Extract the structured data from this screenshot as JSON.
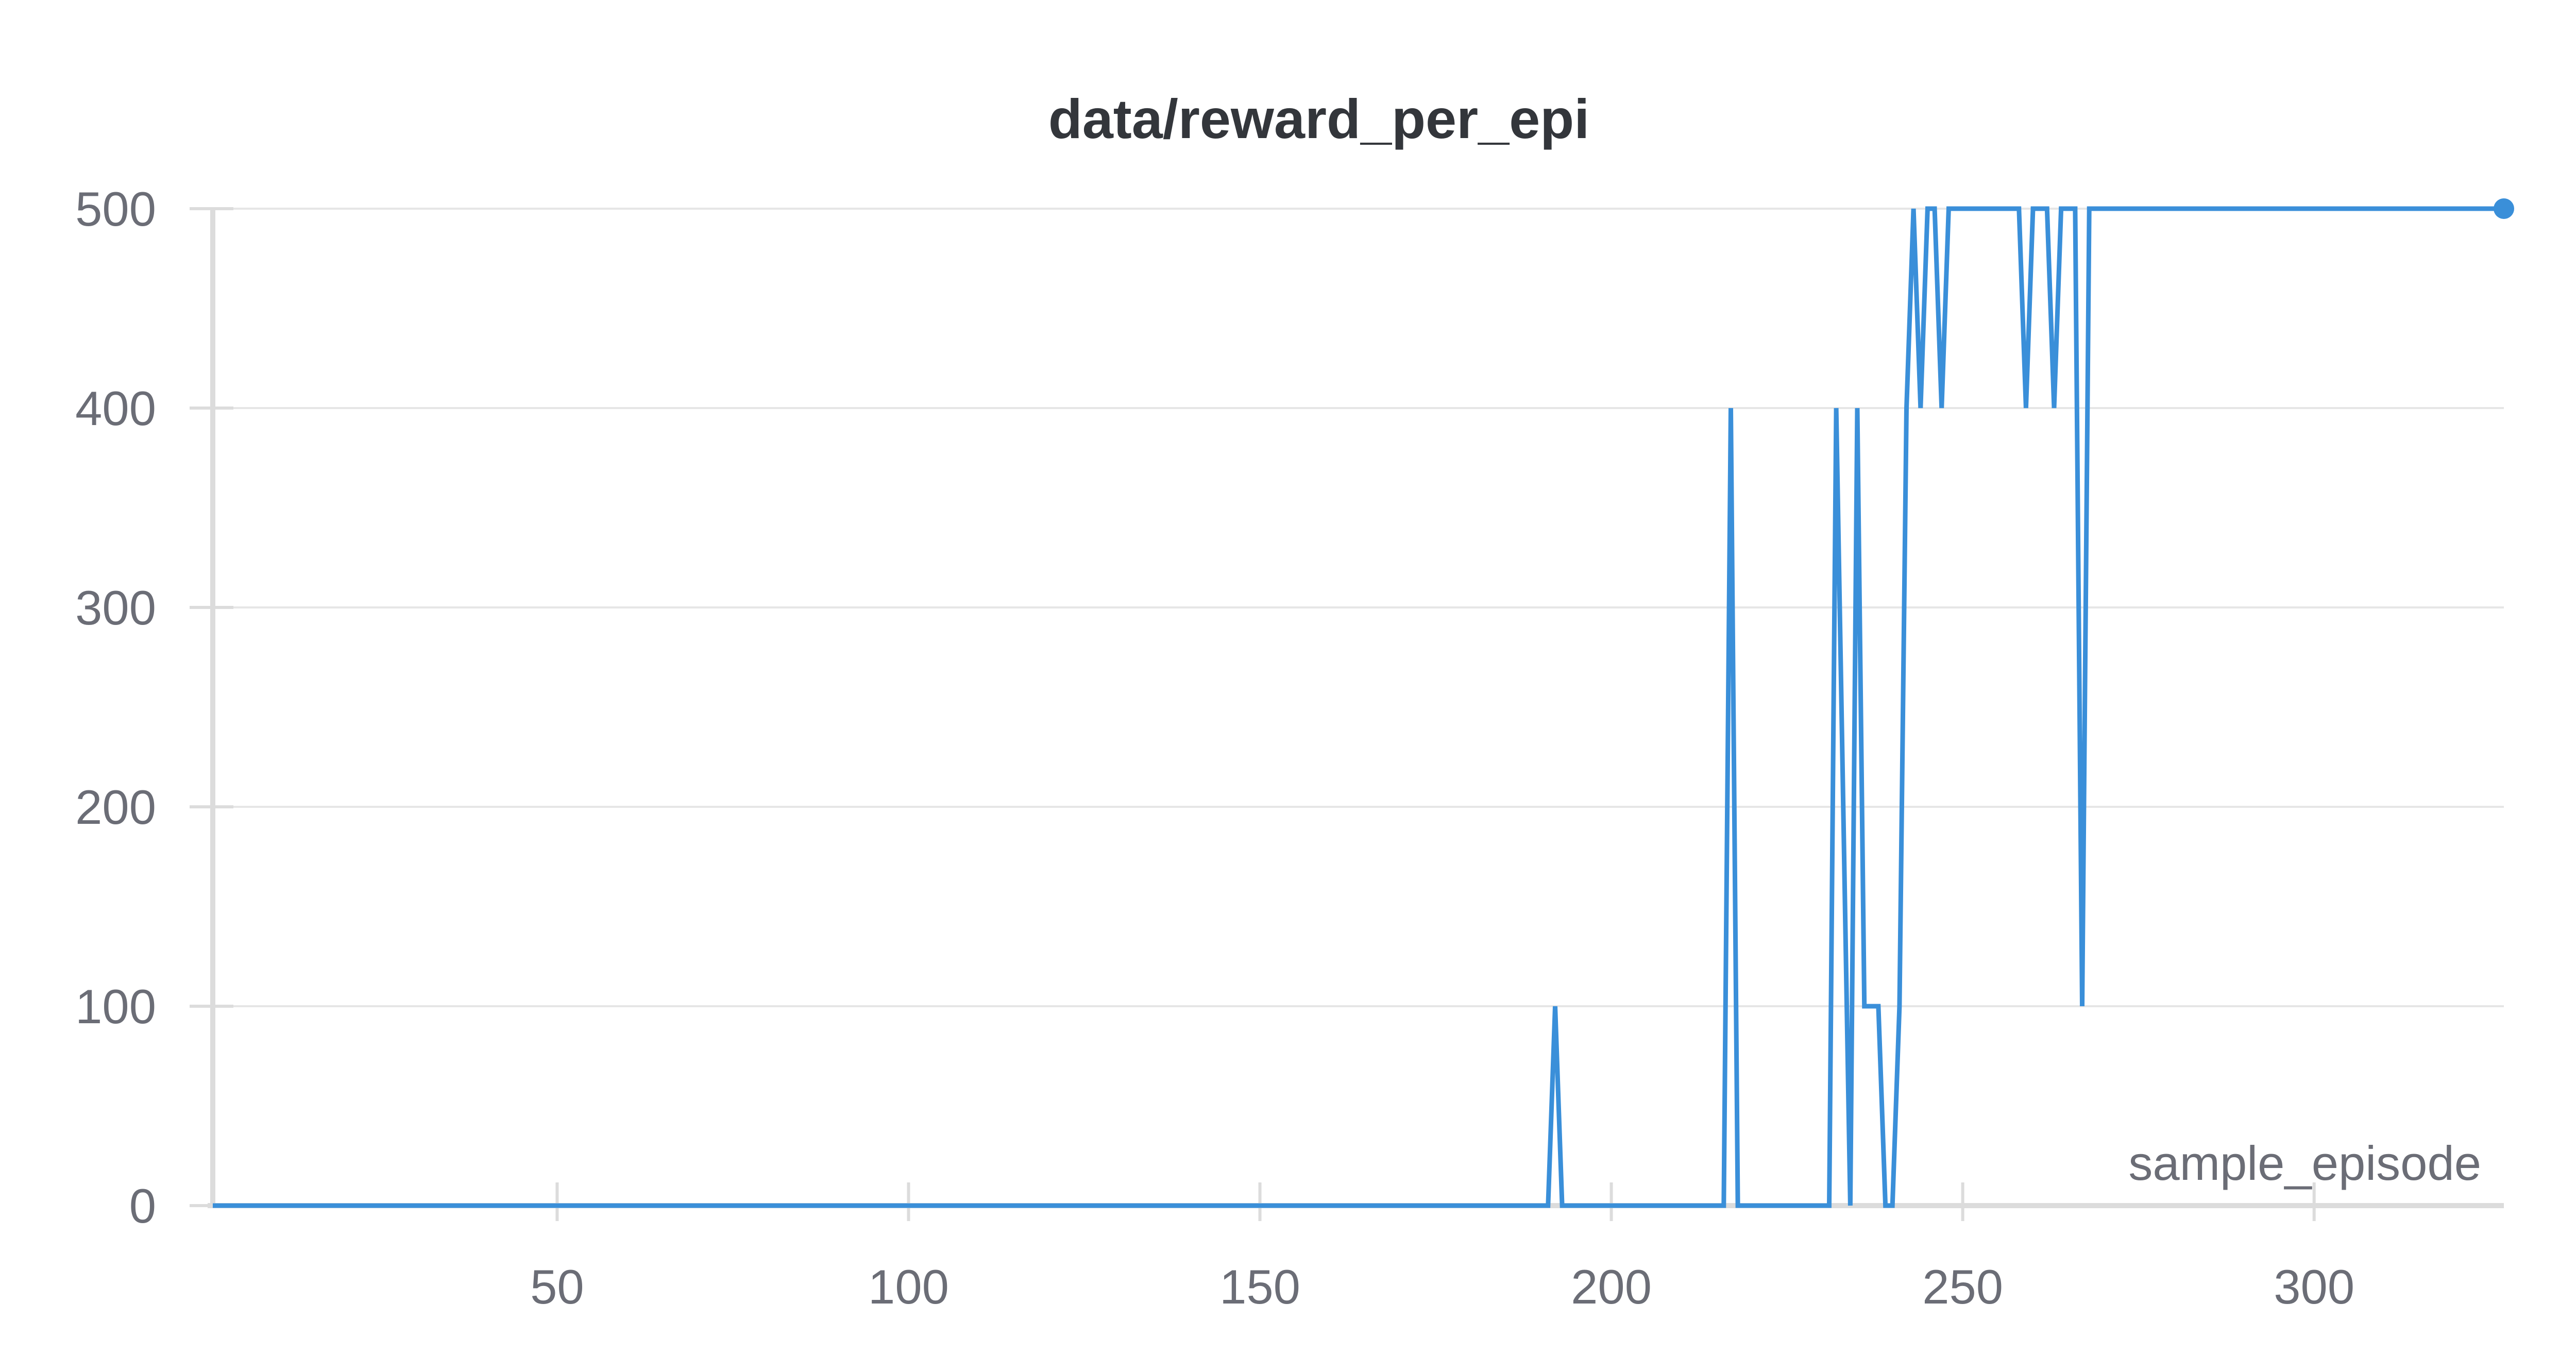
{
  "chart_data": {
    "type": "line",
    "title": "data/reward_per_epi",
    "xlabel": "sample_episode",
    "ylabel": "",
    "xlim": [
      1,
      327
    ],
    "ylim": [
      0,
      500
    ],
    "x_ticks": [
      50,
      100,
      150,
      200,
      250,
      300
    ],
    "y_ticks": [
      0,
      100,
      200,
      300,
      400,
      500
    ],
    "grid": true,
    "legend": "none",
    "line_color": "#3a8fd9",
    "series": [
      {
        "x": [
          1,
          191,
          192,
          193,
          216,
          217,
          218,
          231,
          232,
          234,
          235,
          236,
          238,
          239,
          240,
          241,
          242,
          243,
          244,
          245,
          246,
          247,
          248,
          258,
          259,
          260,
          262,
          263,
          264,
          266,
          267,
          268,
          327
        ],
        "values": [
          0,
          0,
          100,
          0,
          0,
          400,
          0,
          0,
          400,
          0,
          400,
          100,
          100,
          0,
          0,
          100,
          400,
          500,
          400,
          500,
          500,
          400,
          500,
          500,
          400,
          500,
          500,
          400,
          500,
          500,
          100,
          500,
          500
        ]
      }
    ]
  }
}
